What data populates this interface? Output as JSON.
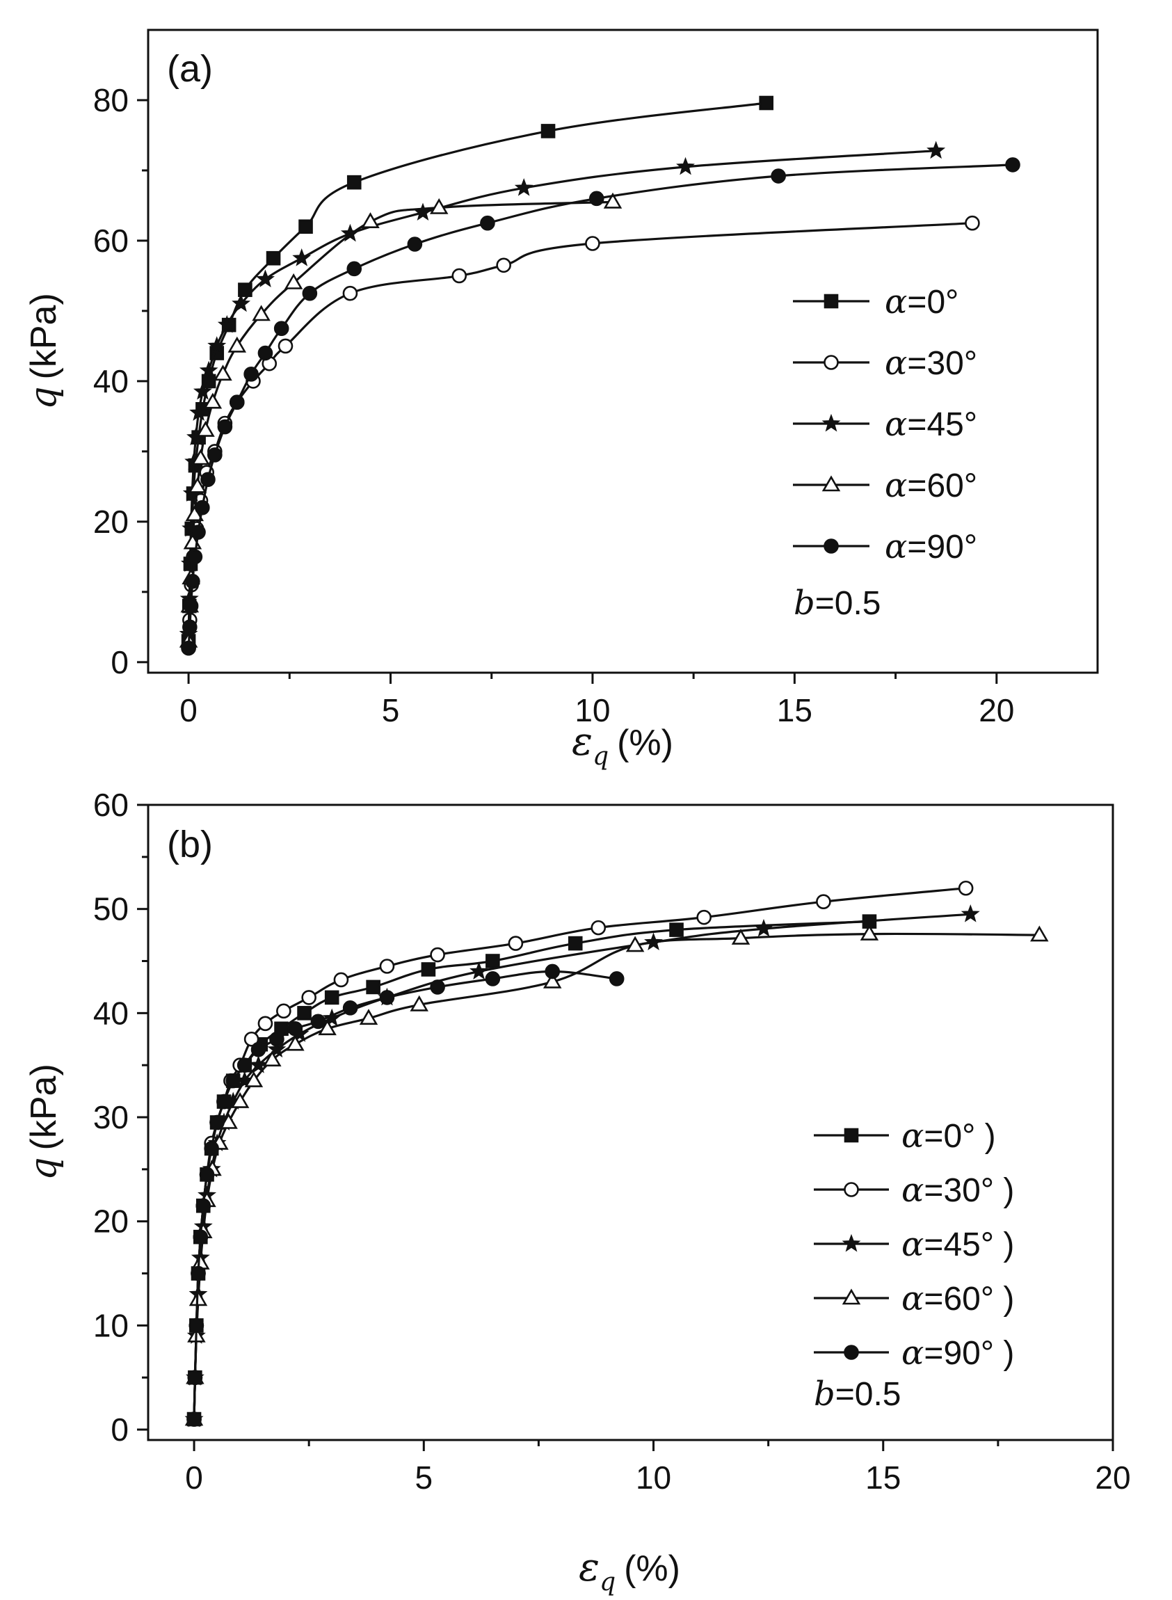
{
  "chart_data": [
    {
      "panel": "(a)",
      "type": "line",
      "xlabel_symbol": "ε",
      "xlabel_subscript": "q",
      "xlabel_unit": "(%)",
      "ylabel_symbol": "q",
      "ylabel_unit": "(kPa)",
      "xlim": [
        -1,
        22.5
      ],
      "ylim": [
        -1.5,
        90
      ],
      "xticks": [
        0,
        5,
        10,
        15,
        20
      ],
      "xtick_labels": [
        "0",
        "5",
        "10",
        "15",
        "20"
      ],
      "yticks": [
        0,
        20,
        40,
        60,
        80
      ],
      "ytick_labels": [
        "0",
        "20",
        "40",
        "60",
        "80"
      ],
      "note_symbol": "b",
      "note_value": "=0.5",
      "series": [
        {
          "name": "α=0°",
          "greek": "α",
          "label_rest": "=0°",
          "marker": "square",
          "fill": "#111",
          "x": [
            0,
            0.02,
            0.05,
            0.08,
            0.12,
            0.17,
            0.25,
            0.35,
            0.5,
            0.7,
            1.0,
            1.4,
            2.1,
            2.9,
            4.1,
            8.9,
            14.3
          ],
          "y": [
            3,
            8,
            14,
            19,
            24,
            28,
            32,
            36,
            40,
            44,
            48,
            53,
            57.5,
            62,
            68.3,
            75.6,
            79.6
          ]
        },
        {
          "name": "α=30°",
          "greek": "α",
          "label_rest": "=30°",
          "marker": "circle",
          "fill": "#fff",
          "x": [
            0,
            0.03,
            0.07,
            0.12,
            0.2,
            0.3,
            0.45,
            0.65,
            0.9,
            1.2,
            1.6,
            2.0,
            2.4,
            4.0,
            6.7,
            7.8,
            10.0,
            19.4
          ],
          "y": [
            2,
            6,
            11,
            15,
            19,
            23,
            27,
            30,
            34,
            37,
            40,
            42.5,
            45,
            52.5,
            55,
            56.5,
            59.6,
            62.5
          ]
        },
        {
          "name": "α=45°",
          "greek": "α",
          "label_rest": "=45°",
          "marker": "star",
          "fill": "#111",
          "x": [
            0,
            0.02,
            0.04,
            0.06,
            0.09,
            0.13,
            0.18,
            0.25,
            0.35,
            0.5,
            0.7,
            0.95,
            1.3,
            1.9,
            2.8,
            4.0,
            5.8,
            8.3,
            12.3,
            18.5
          ],
          "y": [
            4,
            9,
            14,
            19,
            24,
            28.5,
            32,
            35.5,
            38.5,
            41.5,
            45,
            48,
            51,
            54.5,
            57.5,
            61,
            64,
            67.5,
            70.5,
            72.8
          ]
        },
        {
          "name": "α=60°",
          "greek": "α",
          "label_rest": "=60°",
          "marker": "triangle",
          "fill": "#fff",
          "x": [
            0,
            0.03,
            0.06,
            0.1,
            0.15,
            0.22,
            0.3,
            0.42,
            0.6,
            0.85,
            1.2,
            1.8,
            2.6,
            4.5,
            6.2,
            10.5
          ],
          "y": [
            3,
            8,
            12,
            17,
            21,
            25,
            29,
            33,
            37,
            41,
            45,
            49.5,
            54,
            62.7,
            64.7,
            65.5
          ]
        },
        {
          "name": "α=90°",
          "greek": "α",
          "label_rest": "=90°",
          "marker": "dot",
          "fill": "#111",
          "x": [
            0,
            0.03,
            0.06,
            0.1,
            0.16,
            0.24,
            0.34,
            0.48,
            0.65,
            0.9,
            1.2,
            1.55,
            1.9,
            2.3,
            3.0,
            4.1,
            5.6,
            7.4,
            10.1,
            14.6,
            20.4
          ],
          "y": [
            2,
            5,
            8,
            11.5,
            15,
            18.5,
            22,
            26,
            29.5,
            33.5,
            37,
            41,
            44,
            47.5,
            52.5,
            56,
            59.5,
            62.5,
            66,
            69.2,
            70.8
          ]
        }
      ]
    },
    {
      "panel": "(b)",
      "type": "line",
      "xlabel_symbol": "ε",
      "xlabel_subscript": "q",
      "xlabel_unit": "(%)",
      "ylabel_symbol": "q",
      "ylabel_unit": "(kPa)",
      "xlim": [
        -1,
        20
      ],
      "ylim": [
        -1,
        60
      ],
      "xticks": [
        0,
        5,
        10,
        15,
        20
      ],
      "xtick_labels": [
        "0",
        "5",
        "10",
        "15",
        "20"
      ],
      "yticks": [
        0,
        10,
        20,
        30,
        40,
        50,
        60
      ],
      "ytick_labels": [
        "0",
        "10",
        "20",
        "30",
        "40",
        "50",
        "60"
      ],
      "note_symbol": "b",
      "note_value": "=0.5",
      "series": [
        {
          "name": "α=0° )",
          "greek": "α",
          "label_rest": "=0° )",
          "marker": "square",
          "fill": "#111",
          "x": [
            0,
            0.02,
            0.05,
            0.09,
            0.14,
            0.2,
            0.28,
            0.38,
            0.5,
            0.65,
            0.85,
            1.1,
            1.45,
            1.9,
            2.4,
            3.0,
            3.9,
            5.1,
            6.5,
            8.3,
            10.5,
            14.7
          ],
          "y": [
            1,
            5,
            10,
            15,
            18.5,
            21.5,
            24.5,
            27,
            29.5,
            31.5,
            33.5,
            35,
            37,
            38.5,
            40,
            41.5,
            42.5,
            44.2,
            45,
            46.7,
            48,
            48.8
          ]
        },
        {
          "name": "α=30° )",
          "greek": "α",
          "label_rest": "=30° )",
          "marker": "circle",
          "fill": "#fff",
          "x": [
            0,
            0.02,
            0.05,
            0.09,
            0.14,
            0.2,
            0.28,
            0.38,
            0.5,
            0.65,
            0.8,
            1.0,
            1.25,
            1.55,
            1.95,
            2.5,
            3.2,
            4.2,
            5.3,
            7.0,
            8.8,
            11.1,
            13.7,
            16.8
          ],
          "y": [
            1,
            5,
            10,
            15,
            18.5,
            21.5,
            24.5,
            27.5,
            29.5,
            31.5,
            33.5,
            35,
            37.5,
            39,
            40.2,
            41.5,
            43.2,
            44.5,
            45.6,
            46.7,
            48.2,
            49.2,
            50.7,
            52
          ]
        },
        {
          "name": "α=45° )",
          "greek": "α",
          "label_rest": "=45° )",
          "marker": "star",
          "fill": "#111",
          "x": [
            0,
            0.02,
            0.05,
            0.09,
            0.14,
            0.2,
            0.28,
            0.38,
            0.5,
            0.65,
            0.85,
            1.1,
            1.4,
            1.8,
            2.3,
            3.0,
            4.2,
            6.2,
            10.0,
            12.4,
            16.9
          ],
          "y": [
            1,
            5,
            9,
            13,
            16.5,
            19.5,
            22.5,
            25,
            27.5,
            29.5,
            31.5,
            33.5,
            35,
            36.5,
            38,
            39.5,
            41.5,
            44,
            46.8,
            48.1,
            49.5
          ]
        },
        {
          "name": "α=60° )",
          "greek": "α",
          "label_rest": "=60° )",
          "marker": "triangle",
          "fill": "#fff",
          "x": [
            0,
            0.02,
            0.05,
            0.09,
            0.14,
            0.2,
            0.28,
            0.4,
            0.55,
            0.75,
            1.0,
            1.3,
            1.7,
            2.2,
            2.9,
            3.8,
            4.9,
            7.8,
            9.6,
            11.9,
            14.7,
            18.4
          ],
          "y": [
            1,
            5,
            9,
            12.5,
            16,
            19,
            22,
            25,
            27.5,
            29.5,
            31.5,
            33.5,
            35.5,
            37,
            38.5,
            39.5,
            40.8,
            43,
            46.5,
            47.2,
            47.6,
            47.5
          ]
        },
        {
          "name": "α=90° )",
          "greek": "α",
          "label_rest": "=90° )",
          "marker": "dot",
          "fill": "#111",
          "x": [
            0,
            0.02,
            0.05,
            0.09,
            0.14,
            0.2,
            0.28,
            0.38,
            0.5,
            0.65,
            0.85,
            1.1,
            1.4,
            1.8,
            2.2,
            2.7,
            3.4,
            4.2,
            5.3,
            6.5,
            7.8,
            9.2
          ],
          "y": [
            1,
            5,
            10,
            15,
            18.5,
            21.5,
            24.5,
            27,
            29.5,
            31.5,
            33.5,
            35,
            36.5,
            37.5,
            38.5,
            39.2,
            40.5,
            41.5,
            42.5,
            43.3,
            44,
            43.3
          ]
        }
      ]
    }
  ]
}
